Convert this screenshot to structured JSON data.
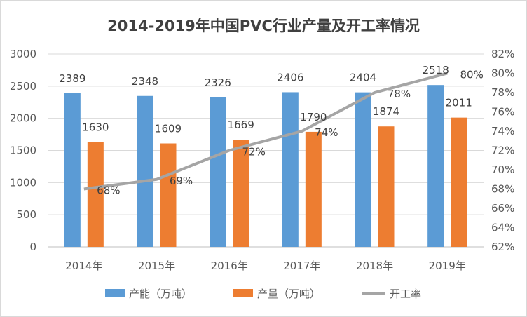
{
  "chart_data": {
    "type": "bar",
    "title": "2014-2019年中国PVC行业产量及开工率情况",
    "categories": [
      "2014年",
      "2015年",
      "2016年",
      "2017年",
      "2018年",
      "2019年"
    ],
    "series": [
      {
        "name": "产能（万吨）",
        "type": "bar",
        "axis": "left",
        "color": "#5B9BD5",
        "values": [
          2389,
          2348,
          2326,
          2406,
          2404,
          2518
        ]
      },
      {
        "name": "产量（万吨）",
        "type": "bar",
        "axis": "left",
        "color": "#ED7D31",
        "values": [
          1630,
          1609,
          1669,
          1790,
          1874,
          2011
        ]
      },
      {
        "name": "开工率",
        "type": "line",
        "axis": "right",
        "color": "#A5A5A5",
        "values": [
          68,
          69,
          72,
          74,
          78,
          80
        ],
        "labels": [
          "68%",
          "69%",
          "72%",
          "74%",
          "78%",
          "80%"
        ]
      }
    ],
    "y_left": {
      "min": 0,
      "max": 3000,
      "ticks": [
        "0",
        "500",
        "1000",
        "1500",
        "2000",
        "2500",
        "3000"
      ]
    },
    "y_right": {
      "min": 62,
      "max": 82,
      "ticks": [
        "62%",
        "64%",
        "66%",
        "68%",
        "70%",
        "72%",
        "74%",
        "76%",
        "78%",
        "80%",
        "82%"
      ]
    },
    "grid": true,
    "legend_position": "bottom"
  }
}
